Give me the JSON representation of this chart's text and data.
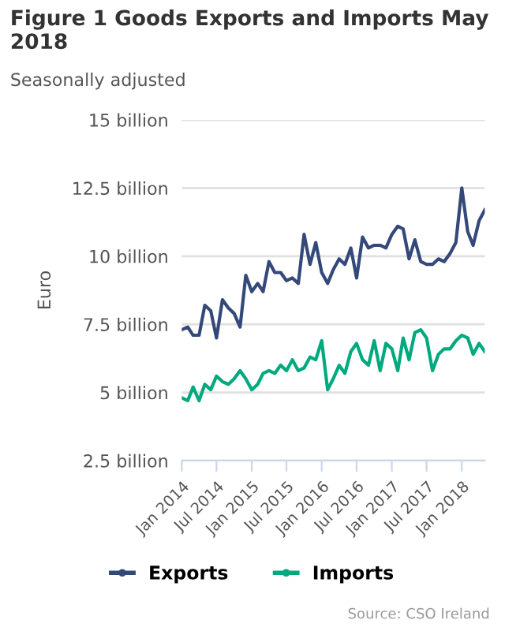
{
  "chart_data": {
    "type": "line",
    "title": "Figure 1 Goods Exports and Imports May 2018",
    "subtitle": "Seasonally adjusted",
    "ylabel": "Euro",
    "annotations": [
      "Source: CSO Ireland"
    ],
    "x": [
      "2014-01",
      "2014-02",
      "2014-03",
      "2014-04",
      "2014-05",
      "2014-06",
      "2014-07",
      "2014-08",
      "2014-09",
      "2014-10",
      "2014-11",
      "2014-12",
      "2015-01",
      "2015-02",
      "2015-03",
      "2015-04",
      "2015-05",
      "2015-06",
      "2015-07",
      "2015-08",
      "2015-09",
      "2015-10",
      "2015-11",
      "2015-12",
      "2016-01",
      "2016-02",
      "2016-03",
      "2016-04",
      "2016-05",
      "2016-06",
      "2016-07",
      "2016-08",
      "2016-09",
      "2016-10",
      "2016-11",
      "2016-12",
      "2017-01",
      "2017-02",
      "2017-03",
      "2017-04",
      "2017-05",
      "2017-06",
      "2017-07",
      "2017-08",
      "2017-09",
      "2017-10",
      "2017-11",
      "2017-12",
      "2018-01",
      "2018-02",
      "2018-03",
      "2018-04",
      "2018-05"
    ],
    "series": [
      {
        "name": "Exports",
        "color": "#34497a",
        "values": [
          7.3,
          7.4,
          7.1,
          7.1,
          8.2,
          8.0,
          7.0,
          8.4,
          8.1,
          7.9,
          7.4,
          9.3,
          8.7,
          9.0,
          8.7,
          9.8,
          9.4,
          9.4,
          9.1,
          9.2,
          9.0,
          10.8,
          9.7,
          10.5,
          9.4,
          9.0,
          9.5,
          9.9,
          9.7,
          10.3,
          9.2,
          10.7,
          10.3,
          10.4,
          10.4,
          10.3,
          10.8,
          11.1,
          11.0,
          9.9,
          10.6,
          9.8,
          9.7,
          9.7,
          9.9,
          9.8,
          10.1,
          10.5,
          12.5,
          10.9,
          10.4,
          11.3,
          11.7
        ]
      },
      {
        "name": "Imports",
        "color": "#00a97e",
        "values": [
          4.8,
          4.7,
          5.2,
          4.7,
          5.3,
          5.1,
          5.6,
          5.4,
          5.3,
          5.5,
          5.8,
          5.5,
          5.1,
          5.3,
          5.7,
          5.8,
          5.7,
          6.0,
          5.8,
          6.2,
          5.8,
          5.9,
          6.3,
          6.2,
          6.9,
          5.1,
          5.5,
          6.0,
          5.7,
          6.5,
          6.8,
          6.2,
          6.0,
          6.9,
          5.8,
          6.8,
          6.6,
          5.8,
          7.0,
          6.2,
          7.2,
          7.3,
          7.0,
          5.8,
          6.4,
          6.6,
          6.6,
          6.9,
          7.1,
          7.0,
          6.4,
          6.8,
          6.5
        ]
      }
    ],
    "xlim": [
      "2014-01",
      "2018-05"
    ],
    "xticks": [
      {
        "value": "2014-01",
        "label": "Jan 2014"
      },
      {
        "value": "2014-07",
        "label": "Jul 2014"
      },
      {
        "value": "2015-01",
        "label": "Jan 2015"
      },
      {
        "value": "2015-07",
        "label": "Jul 2015"
      },
      {
        "value": "2016-01",
        "label": "Jan 2016"
      },
      {
        "value": "2016-07",
        "label": "Jul 2016"
      },
      {
        "value": "2017-01",
        "label": "Jan 2017"
      },
      {
        "value": "2017-07",
        "label": "Jul 2017"
      },
      {
        "value": "2018-01",
        "label": "Jan 2018"
      }
    ],
    "ylim": [
      2.5,
      15
    ],
    "yticks": [
      {
        "value": 2.5,
        "label": "2.5 billion"
      },
      {
        "value": 5,
        "label": "5 billion"
      },
      {
        "value": 7.5,
        "label": "7.5 billion"
      },
      {
        "value": 10,
        "label": "10 billion"
      },
      {
        "value": 12.5,
        "label": "12.5 billion"
      },
      {
        "value": 15,
        "label": "15 billion"
      }
    ],
    "grid": "y",
    "legend": "bottom",
    "marker": "none",
    "line_style": "solid"
  }
}
